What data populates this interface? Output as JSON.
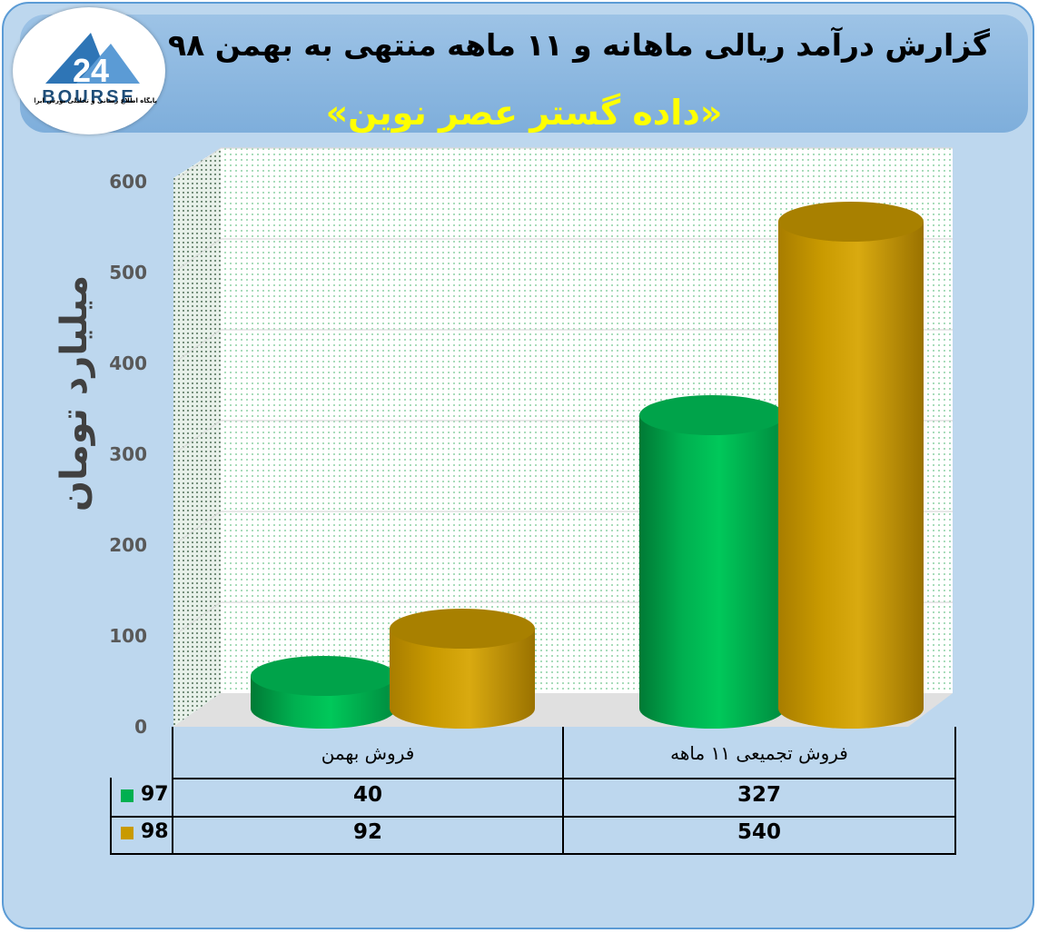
{
  "header": {
    "title": "گزارش درآمد ریالی ماهانه و ۱۱ ماهه منتهی به بهمن ۹۸",
    "subtitle": "«داده گستر عصر نوین»"
  },
  "logo": {
    "number": "24",
    "name": "BOURSE",
    "tagline": "پایگاه اطلاع رسانی و تحلیلی بورس ایران"
  },
  "colors": {
    "series_97": "#00b050",
    "series_98": "#c99a00",
    "background": "#bdd7ee",
    "header": "#9dc3e6"
  },
  "chart_data": {
    "type": "bar",
    "ylabel": "میلیارد تومان",
    "ylim": [
      0,
      600
    ],
    "yticks": [
      "0",
      "100",
      "200",
      "300",
      "400",
      "500",
      "600"
    ],
    "categories": [
      "فروش بهمن",
      "فروش تجمیعی ۱۱ ماهه"
    ],
    "series": [
      {
        "name": "97",
        "values": [
          40,
          327
        ]
      },
      {
        "name": "98",
        "values": [
          92,
          540
        ]
      }
    ],
    "grid": true
  },
  "table": {
    "rows": [
      {
        "label": "97",
        "values": [
          "40",
          "327"
        ]
      },
      {
        "label": "98",
        "values": [
          "92",
          "540"
        ]
      }
    ]
  }
}
